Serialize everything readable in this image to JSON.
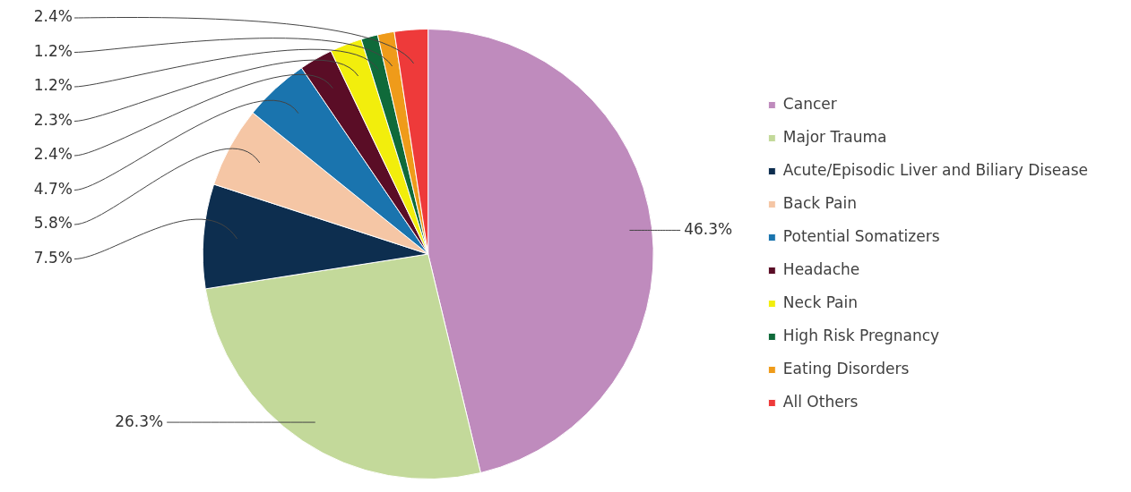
{
  "chart_data": {
    "type": "pie",
    "categories": [
      "Cancer",
      "Major Trauma",
      "Acute/Episodic Liver and Biliary Disease",
      "Back Pain",
      "Potential Somatizers",
      "Headache",
      "Neck Pain",
      "High Risk Pregnancy",
      "Eating Disorders",
      "All Others"
    ],
    "values": [
      46.3,
      26.3,
      7.5,
      5.8,
      4.7,
      2.4,
      2.3,
      1.2,
      1.2,
      2.4
    ],
    "value_labels": [
      "46.3%",
      "26.3%",
      "7.5%",
      "5.8%",
      "4.7%",
      "2.4%",
      "2.3%",
      "1.2%",
      "1.2%",
      "2.4%"
    ],
    "colors": [
      "#bf8bbd",
      "#c3d99a",
      "#0d2e4f",
      "#f5c6a5",
      "#1a74ae",
      "#5a0d26",
      "#f2ee0c",
      "#0f6a3a",
      "#ef9b1a",
      "#ee3a3a"
    ],
    "legend": "right"
  }
}
